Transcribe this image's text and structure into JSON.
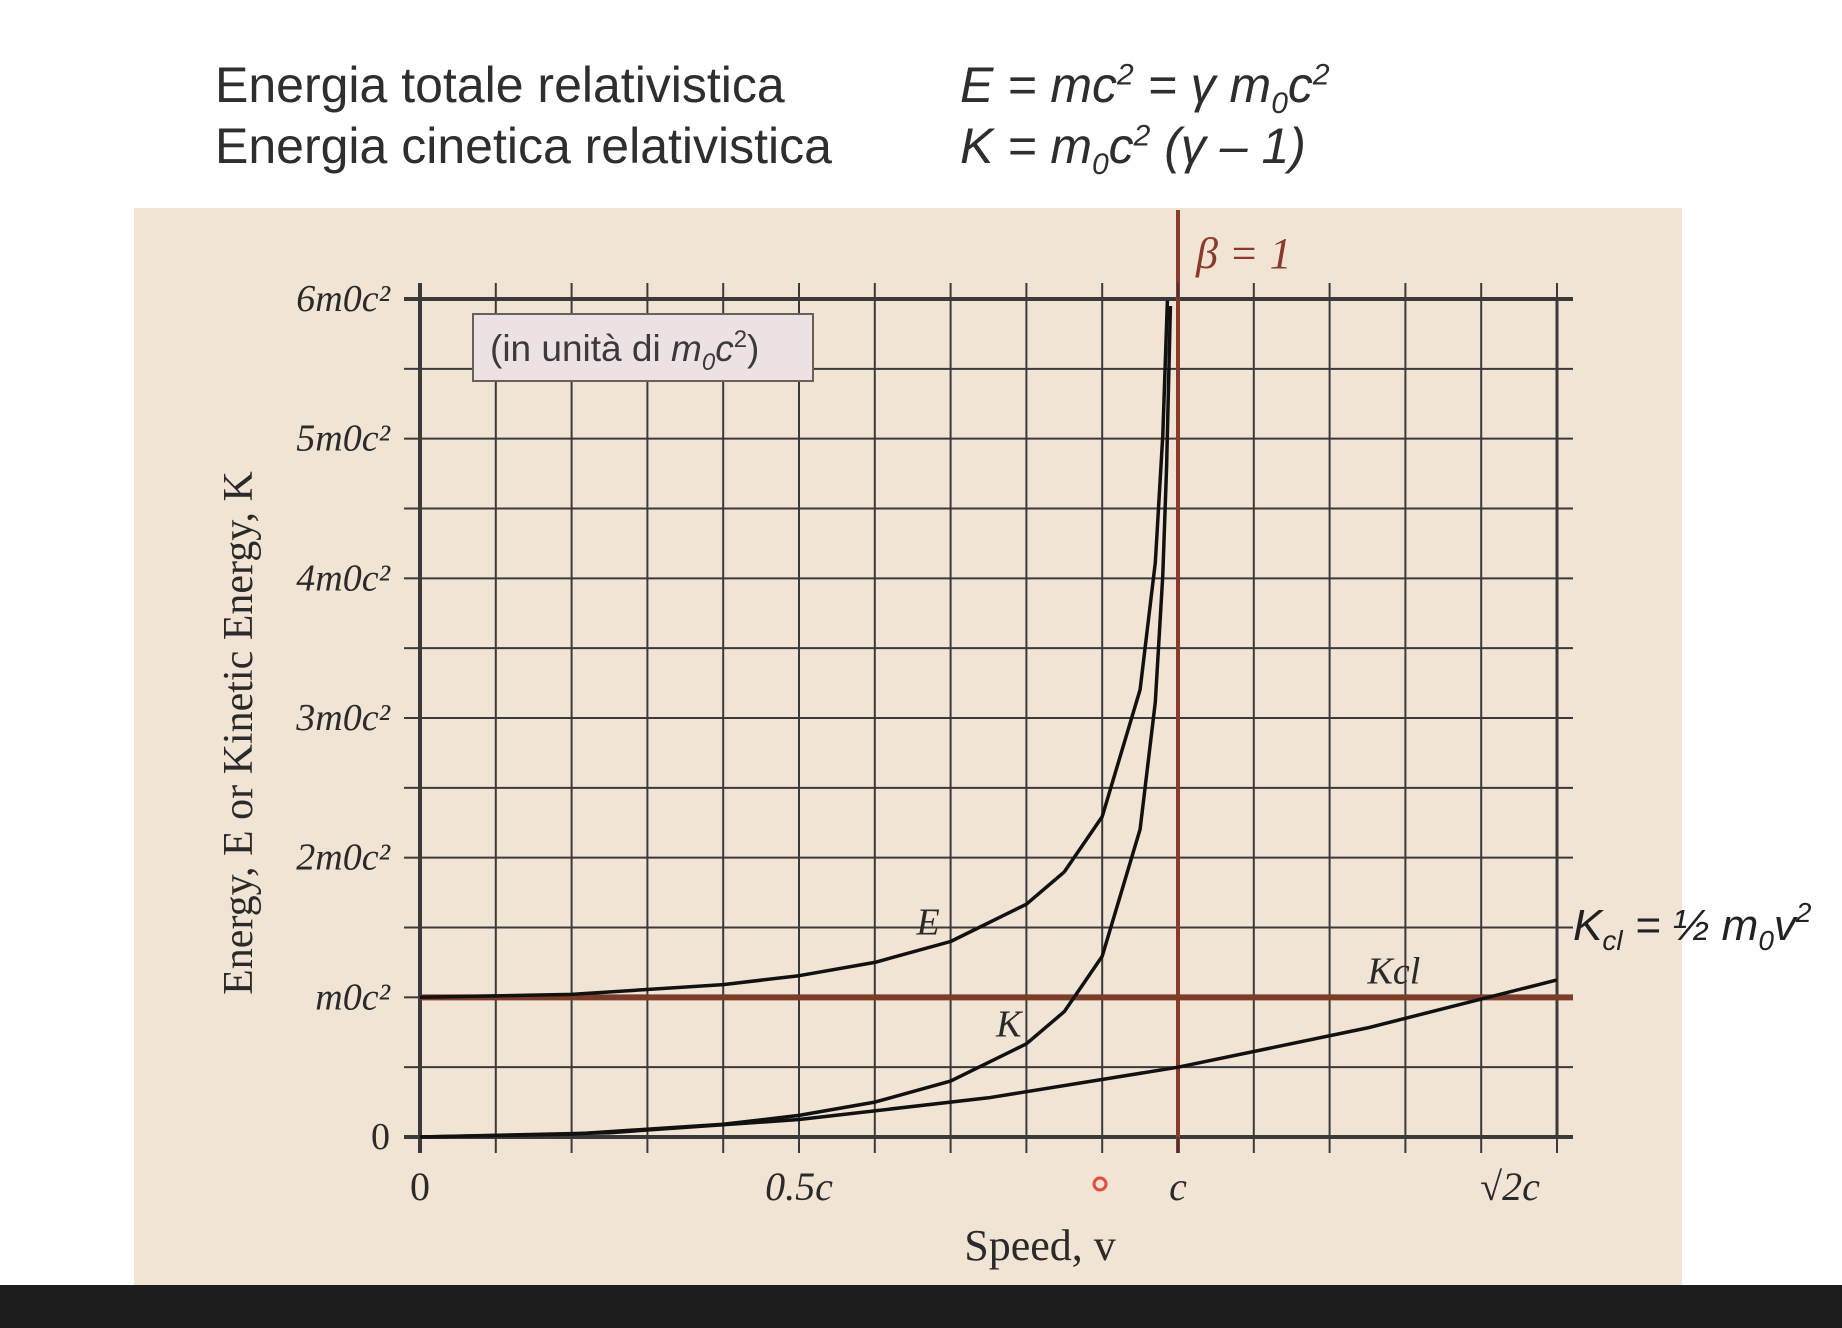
{
  "heading": {
    "rows": [
      {
        "label": "Energia totale relativistica",
        "formula_parts": [
          "E = mc",
          "2",
          " = γ m",
          "0",
          "c",
          "2"
        ]
      },
      {
        "label": "Energia cinetica relativistica",
        "formula_parts": [
          "K = m",
          "0",
          "c",
          "2",
          " (γ – 1)"
        ]
      }
    ]
  },
  "chart_data": {
    "type": "line",
    "xlabel": "Speed, v",
    "ylabel": "Energy, E or Kinetic Energy, K",
    "x_unit": "c",
    "y_unit": "m0c²",
    "xlim": [
      0,
      1.5
    ],
    "ylim": [
      0,
      6
    ],
    "x_ticks": [
      {
        "value": 0,
        "label": "0"
      },
      {
        "value": 0.5,
        "label": "0.5c"
      },
      {
        "value": 1,
        "label": "c"
      },
      {
        "value": 1.41421,
        "label": "√2c"
      }
    ],
    "y_ticks": [
      {
        "value": 0,
        "label": "0"
      },
      {
        "value": 1,
        "label": "m0c²"
      },
      {
        "value": 2,
        "label": "2m0c²"
      },
      {
        "value": 3,
        "label": "3m0c²"
      },
      {
        "value": 4,
        "label": "4m0c²"
      },
      {
        "value": 5,
        "label": "5m0c²"
      },
      {
        "value": 6,
        "label": "6m0c²"
      }
    ],
    "grid": true,
    "series": [
      {
        "name": "E",
        "color": "#111111",
        "x": [
          0,
          0.2,
          0.4,
          0.5,
          0.6,
          0.7,
          0.8,
          0.85,
          0.9,
          0.95,
          0.97,
          0.98,
          0.986
        ],
        "y": [
          1,
          1.021,
          1.091,
          1.155,
          1.25,
          1.4,
          1.667,
          1.898,
          2.294,
          3.203,
          4.113,
          5.025,
          5.99
        ]
      },
      {
        "name": "K",
        "color": "#111111",
        "x": [
          0,
          0.2,
          0.4,
          0.5,
          0.6,
          0.7,
          0.8,
          0.85,
          0.9,
          0.95,
          0.97,
          0.98,
          0.985,
          0.99
        ],
        "y": [
          0,
          0.021,
          0.091,
          0.155,
          0.25,
          0.4,
          0.667,
          0.898,
          1.294,
          2.203,
          3.113,
          4.025,
          4.8,
          5.95
        ]
      },
      {
        "name": "Kcl",
        "color": "#111111",
        "x": [
          0,
          0.25,
          0.5,
          0.75,
          1,
          1.25,
          1.5
        ],
        "y": [
          0,
          0.031,
          0.125,
          0.281,
          0.5,
          0.781,
          1.125
        ]
      }
    ],
    "reference_lines": [
      {
        "orientation": "vertical",
        "value": 1,
        "label": "β = 1",
        "color": "#8b3a2a"
      },
      {
        "orientation": "horizontal",
        "value": 1,
        "color": "#7a3d2a"
      }
    ],
    "annotations": {
      "units_box": "(in unità di m0c²)",
      "units_box_parts": [
        "(in unità di ",
        "m",
        "0",
        "c",
        "2",
        ")"
      ],
      "curve_labels": [
        {
          "series": "E",
          "text": "E"
        },
        {
          "series": "K",
          "text": "K"
        },
        {
          "series": "Kcl",
          "text": "Kcl"
        }
      ],
      "side_label_parts": [
        "K",
        "cl",
        " = ½ m",
        "0",
        "v",
        "2"
      ],
      "side_label": "Kcl = ½ m0v²",
      "beta_label": "β = 1"
    }
  }
}
